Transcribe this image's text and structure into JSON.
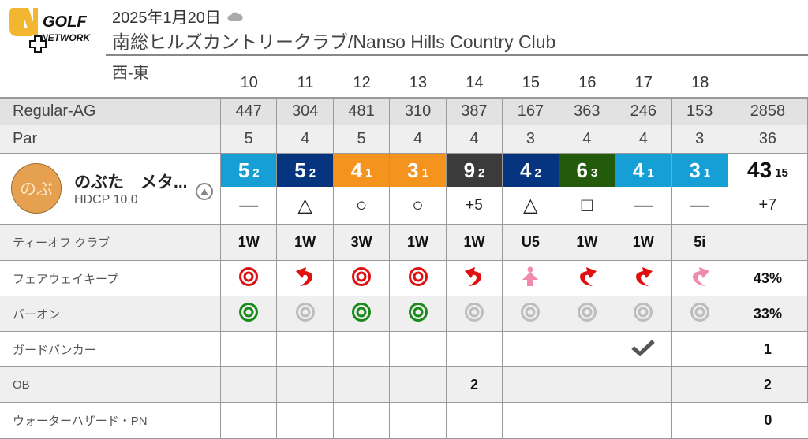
{
  "header": {
    "logo_text": "GOLF NETWORK",
    "date": "2025年1月20日",
    "weather_icon": "cloud-icon",
    "course": "南総ヒルズカントリークラブ/Nanso Hills Country Club",
    "route": "西-東"
  },
  "holes": [
    "10",
    "11",
    "12",
    "13",
    "14",
    "15",
    "16",
    "17",
    "18"
  ],
  "yardage": {
    "label": "Regular-AG",
    "values": [
      "447",
      "304",
      "481",
      "310",
      "387",
      "167",
      "363",
      "246",
      "153"
    ],
    "total": "2858"
  },
  "par": {
    "label": "Par",
    "values": [
      "5",
      "4",
      "5",
      "4",
      "4",
      "3",
      "4",
      "4",
      "3"
    ],
    "total": "36"
  },
  "player": {
    "avatar": "のぶ",
    "name": "のぶた　メタ...",
    "hdcp": "HDCP 10.0",
    "scores": [
      {
        "s": "5",
        "p": "2",
        "color": "#159fd5"
      },
      {
        "s": "5",
        "p": "2",
        "color": "#07347e"
      },
      {
        "s": "4",
        "p": "1",
        "color": "#f4931e"
      },
      {
        "s": "3",
        "p": "1",
        "color": "#f4931e"
      },
      {
        "s": "9",
        "p": "2",
        "color": "#3b3b3b"
      },
      {
        "s": "4",
        "p": "2",
        "color": "#07347e"
      },
      {
        "s": "6",
        "p": "3",
        "color": "#245a0c"
      },
      {
        "s": "4",
        "p": "1",
        "color": "#159fd5"
      },
      {
        "s": "3",
        "p": "1",
        "color": "#159fd5"
      }
    ],
    "total": {
      "s": "43",
      "p": "15"
    },
    "results": [
      "—",
      "△",
      "○",
      "○",
      "+5",
      "△",
      "□",
      "—",
      "—"
    ],
    "result_total": "+7"
  },
  "tee_club": {
    "label": "ティーオフ クラブ",
    "values": [
      "1W",
      "1W",
      "3W",
      "1W",
      "1W",
      "U5",
      "1W",
      "1W",
      "5i"
    ],
    "total": ""
  },
  "fairway": {
    "label": "フェアウェイキープ",
    "values": [
      "hit",
      "left",
      "hit",
      "hit",
      "left",
      "short",
      "right",
      "right",
      "right-pink"
    ],
    "total": "43%"
  },
  "par_on": {
    "label": "パーオン",
    "values": [
      true,
      false,
      true,
      true,
      false,
      false,
      false,
      false,
      false
    ],
    "total": "33%"
  },
  "bunker": {
    "label": "ガードバンカー",
    "values": [
      false,
      false,
      false,
      false,
      false,
      false,
      false,
      true,
      false
    ],
    "total": "1"
  },
  "ob": {
    "label": "OB",
    "values": [
      "",
      "",
      "",
      "",
      "2",
      "",
      "",
      "",
      ""
    ],
    "total": "2"
  },
  "water": {
    "label": "ウォーターハザード・PN",
    "values": [
      "",
      "",
      "",
      "",
      "",
      "",
      "",
      "",
      ""
    ],
    "total": "0"
  },
  "colors": {
    "fairway_red": "#e01010",
    "pink": "#f08ab0",
    "green": "#1a8a1a",
    "gray_icon": "#bdbdbd"
  }
}
